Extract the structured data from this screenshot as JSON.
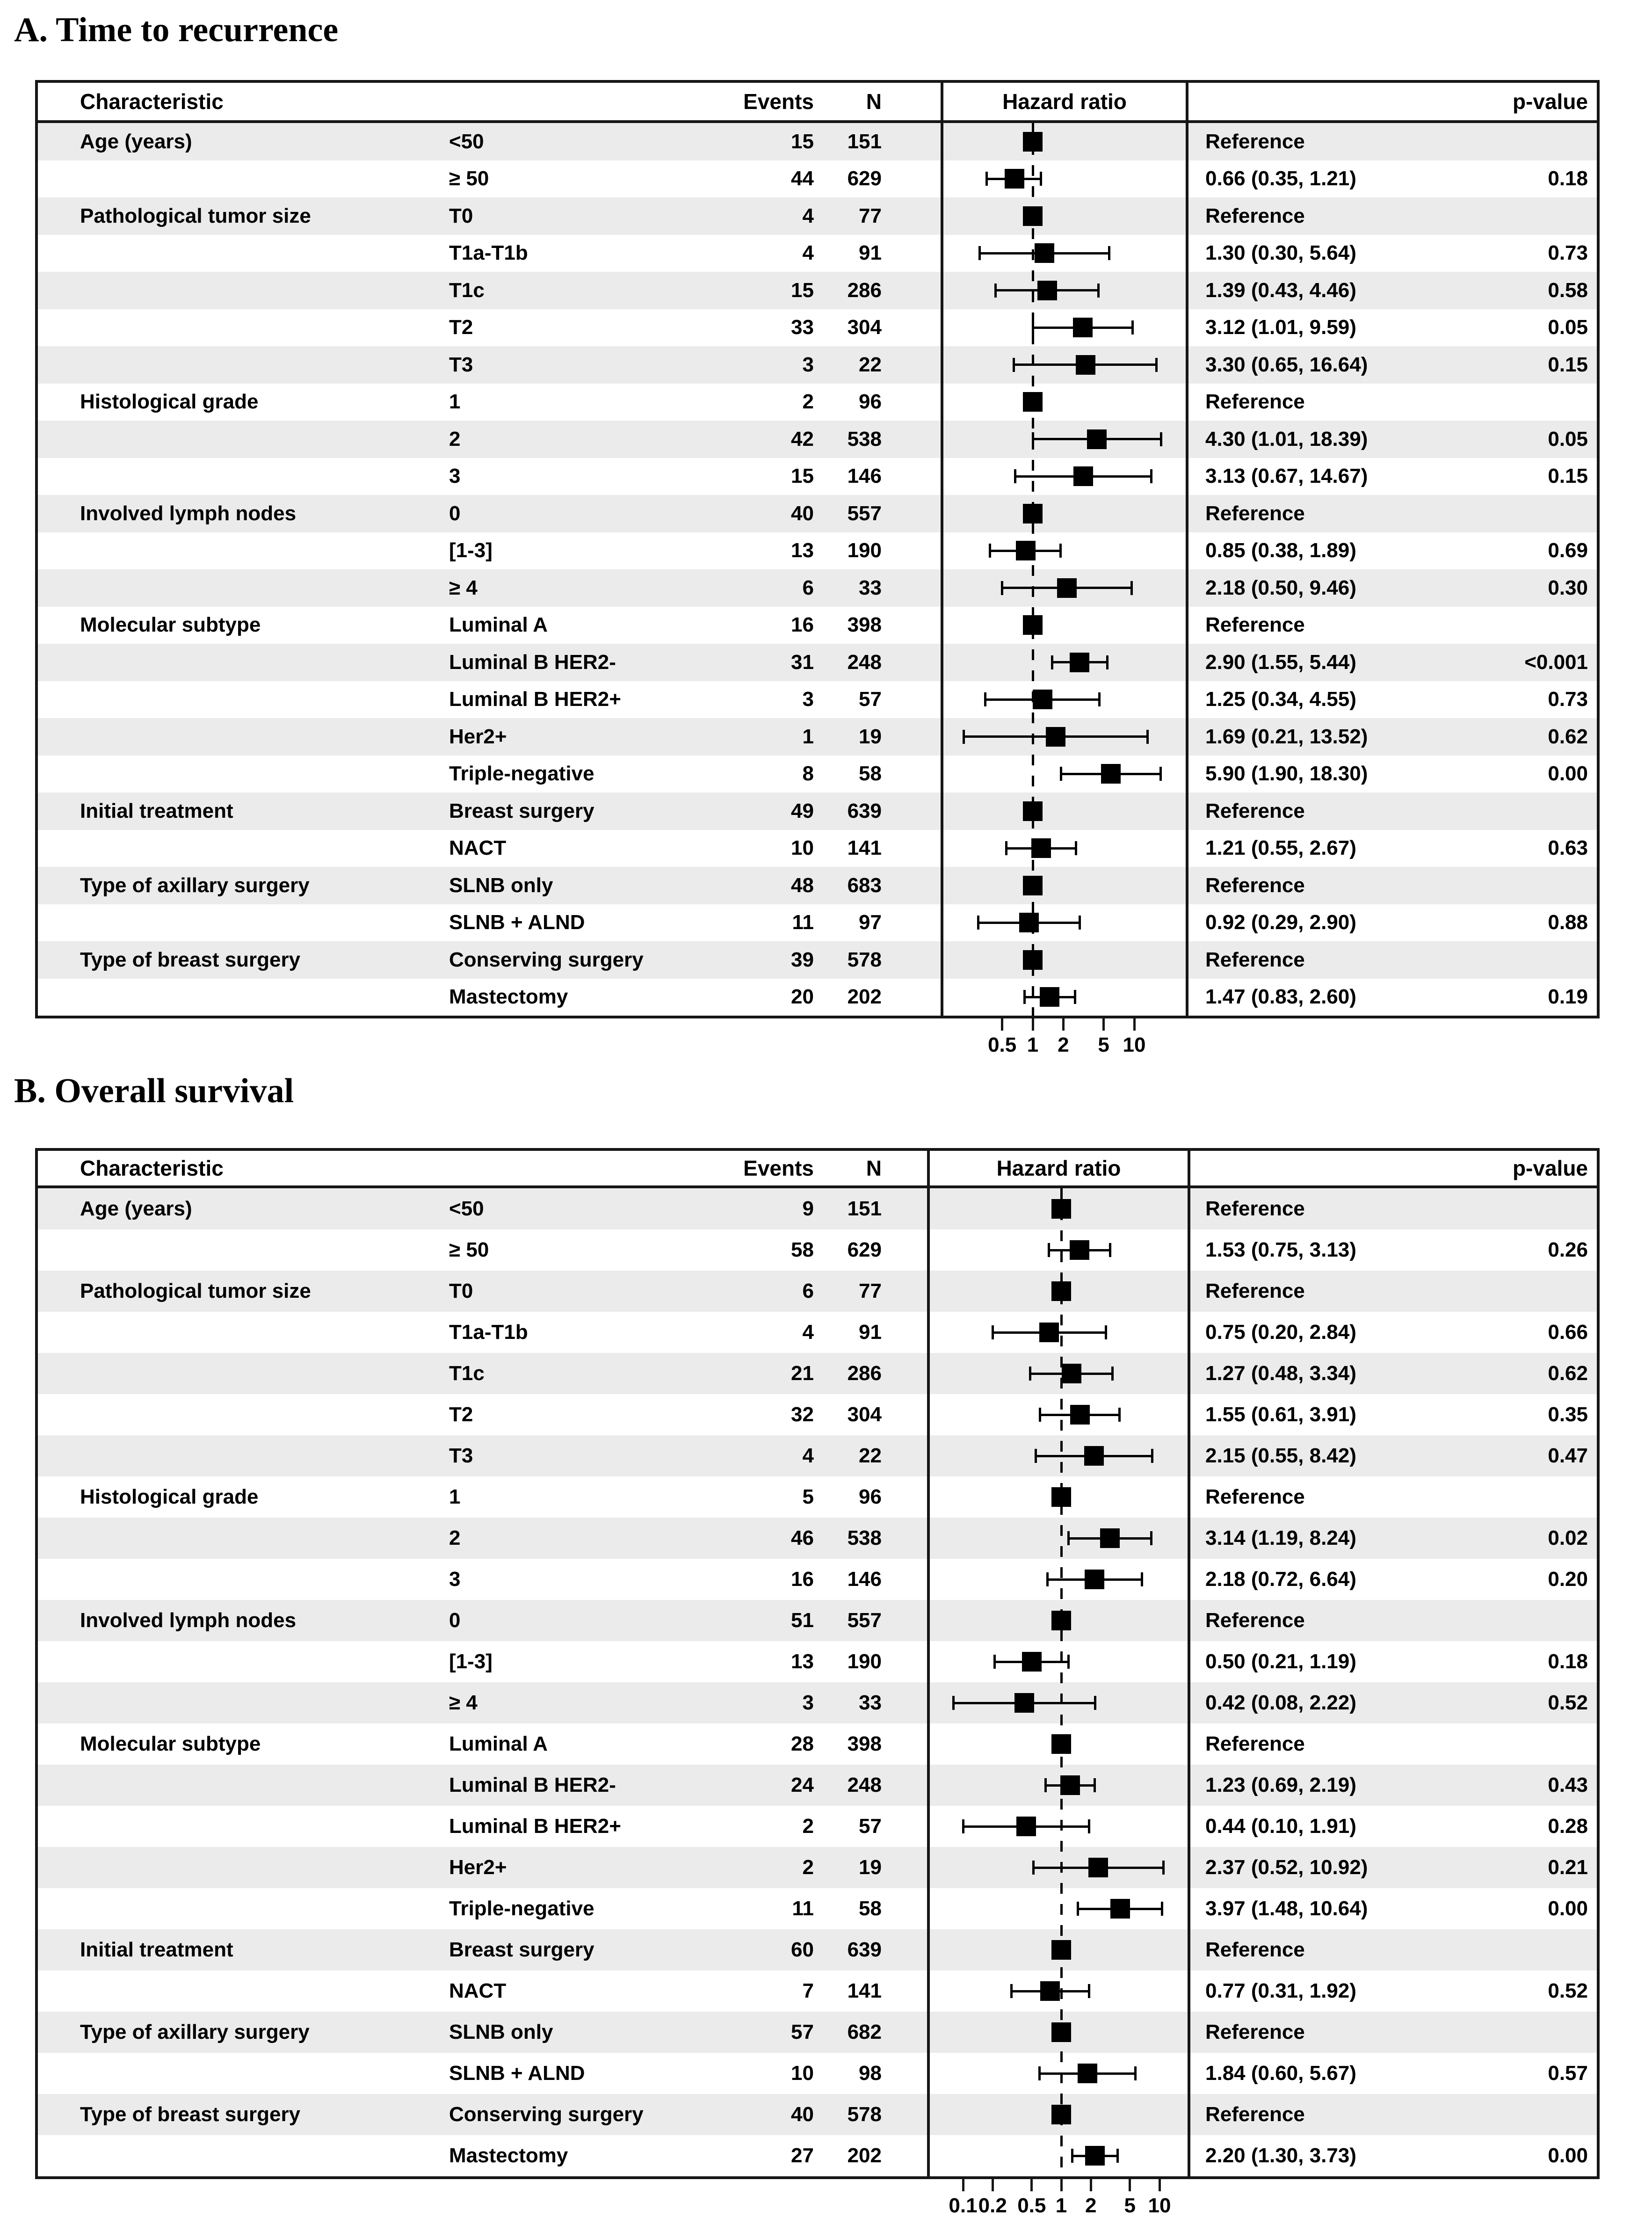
{
  "colors": {
    "row_stripe": "#ebebeb",
    "border": "#161616",
    "marker": "#000000",
    "background": "#ffffff"
  },
  "chart_data": [
    {
      "type": "forest",
      "title": "A. Time to recurrence",
      "columns": {
        "characteristic": "Characteristic",
        "events": "Events",
        "n": "N",
        "hazard_ratio": "Hazard ratio",
        "p_value": "p-value"
      },
      "axis": {
        "scale": "log",
        "ref_line": 1,
        "tick_values": [
          0.5,
          1,
          2,
          5,
          10
        ],
        "tick_labels": [
          "0.5",
          "1",
          "2",
          "5",
          "10"
        ]
      },
      "reference_label": "Reference",
      "rows": [
        {
          "group": "Age (years)",
          "label": "<50",
          "events": 15,
          "n": 151,
          "ref": true,
          "hr": 1,
          "hr_text": "Reference",
          "p": ""
        },
        {
          "group": "",
          "label": "≥ 50",
          "events": 44,
          "n": 629,
          "ref": false,
          "hr": 0.66,
          "lo": 0.35,
          "hi": 1.21,
          "hr_text": "0.66 (0.35, 1.21)",
          "p": "0.18"
        },
        {
          "group": "Pathological tumor size",
          "label": "T0",
          "events": 4,
          "n": 77,
          "ref": true,
          "hr": 1,
          "hr_text": "Reference",
          "p": ""
        },
        {
          "group": "",
          "label": "T1a-T1b",
          "events": 4,
          "n": 91,
          "ref": false,
          "hr": 1.3,
          "lo": 0.3,
          "hi": 5.64,
          "hr_text": "1.30 (0.30, 5.64)",
          "p": "0.73"
        },
        {
          "group": "",
          "label": "T1c",
          "events": 15,
          "n": 286,
          "ref": false,
          "hr": 1.39,
          "lo": 0.43,
          "hi": 4.46,
          "hr_text": "1.39 (0.43, 4.46)",
          "p": "0.58"
        },
        {
          "group": "",
          "label": "T2",
          "events": 33,
          "n": 304,
          "ref": false,
          "hr": 3.12,
          "lo": 1.01,
          "hi": 9.59,
          "hr_text": "3.12 (1.01, 9.59)",
          "p": "0.05"
        },
        {
          "group": "",
          "label": "T3",
          "events": 3,
          "n": 22,
          "ref": false,
          "hr": 3.3,
          "lo": 0.65,
          "hi": 16.64,
          "hr_text": "3.30 (0.65, 16.64)",
          "p": "0.15"
        },
        {
          "group": "Histological grade",
          "label": "1",
          "events": 2,
          "n": 96,
          "ref": true,
          "hr": 1,
          "hr_text": "Reference",
          "p": ""
        },
        {
          "group": "",
          "label": "2",
          "events": 42,
          "n": 538,
          "ref": false,
          "hr": 4.3,
          "lo": 1.01,
          "hi": 18.39,
          "hr_text": "4.30 (1.01, 18.39)",
          "p": "0.05"
        },
        {
          "group": "",
          "label": "3",
          "events": 15,
          "n": 146,
          "ref": false,
          "hr": 3.13,
          "lo": 0.67,
          "hi": 14.67,
          "hr_text": "3.13 (0.67, 14.67)",
          "p": "0.15"
        },
        {
          "group": "Involved lymph nodes",
          "label": "0",
          "events": 40,
          "n": 557,
          "ref": true,
          "hr": 1,
          "hr_text": "Reference",
          "p": ""
        },
        {
          "group": "",
          "label": "[1-3]",
          "events": 13,
          "n": 190,
          "ref": false,
          "hr": 0.85,
          "lo": 0.38,
          "hi": 1.89,
          "hr_text": "0.85 (0.38, 1.89)",
          "p": "0.69"
        },
        {
          "group": "",
          "label": "≥ 4",
          "events": 6,
          "n": 33,
          "ref": false,
          "hr": 2.18,
          "lo": 0.5,
          "hi": 9.46,
          "hr_text": "2.18 (0.50, 9.46)",
          "p": "0.30"
        },
        {
          "group": "Molecular subtype",
          "label": "Luminal A",
          "events": 16,
          "n": 398,
          "ref": true,
          "hr": 1,
          "hr_text": "Reference",
          "p": ""
        },
        {
          "group": "",
          "label": "Luminal B HER2-",
          "events": 31,
          "n": 248,
          "ref": false,
          "hr": 2.9,
          "lo": 1.55,
          "hi": 5.44,
          "hr_text": "2.90 (1.55, 5.44)",
          "p": "<0.001"
        },
        {
          "group": "",
          "label": "Luminal B HER2+",
          "events": 3,
          "n": 57,
          "ref": false,
          "hr": 1.25,
          "lo": 0.34,
          "hi": 4.55,
          "hr_text": "1.25 (0.34, 4.55)",
          "p": "0.73"
        },
        {
          "group": "",
          "label": "Her2+",
          "events": 1,
          "n": 19,
          "ref": false,
          "hr": 1.69,
          "lo": 0.21,
          "hi": 13.52,
          "hr_text": "1.69 (0.21, 13.52)",
          "p": "0.62"
        },
        {
          "group": "",
          "label": "Triple-negative",
          "events": 8,
          "n": 58,
          "ref": false,
          "hr": 5.9,
          "lo": 1.9,
          "hi": 18.3,
          "hr_text": "5.90 (1.90, 18.30)",
          "p": "0.00"
        },
        {
          "group": "Initial treatment",
          "label": "Breast surgery",
          "events": 49,
          "n": 639,
          "ref": true,
          "hr": 1,
          "hr_text": "Reference",
          "p": ""
        },
        {
          "group": "",
          "label": "NACT",
          "events": 10,
          "n": 141,
          "ref": false,
          "hr": 1.21,
          "lo": 0.55,
          "hi": 2.67,
          "hr_text": "1.21 (0.55, 2.67)",
          "p": "0.63"
        },
        {
          "group": "Type of axillary surgery",
          "label": "SLNB only",
          "events": 48,
          "n": 683,
          "ref": true,
          "hr": 1,
          "hr_text": "Reference",
          "p": ""
        },
        {
          "group": "",
          "label": "SLNB + ALND",
          "events": 11,
          "n": 97,
          "ref": false,
          "hr": 0.92,
          "lo": 0.29,
          "hi": 2.9,
          "hr_text": "0.92 (0.29, 2.90)",
          "p": "0.88"
        },
        {
          "group": "Type of breast surgery",
          "label": "Conserving surgery",
          "events": 39,
          "n": 578,
          "ref": true,
          "hr": 1,
          "hr_text": "Reference",
          "p": ""
        },
        {
          "group": "",
          "label": "Mastectomy",
          "events": 20,
          "n": 202,
          "ref": false,
          "hr": 1.47,
          "lo": 0.83,
          "hi": 2.6,
          "hr_text": "1.47 (0.83, 2.60)",
          "p": "0.19"
        }
      ]
    },
    {
      "type": "forest",
      "title": "B. Overall survival",
      "columns": {
        "characteristic": "Characteristic",
        "events": "Events",
        "n": "N",
        "hazard_ratio": "Hazard ratio",
        "p_value": "p-value"
      },
      "axis": {
        "scale": "log",
        "ref_line": 1,
        "tick_values": [
          0.1,
          0.2,
          0.5,
          1,
          2,
          5,
          10
        ],
        "tick_labels": [
          "0.1",
          "0.2",
          "0.5",
          "1",
          "2",
          "5",
          "10"
        ]
      },
      "reference_label": "Reference",
      "rows": [
        {
          "group": "Age (years)",
          "label": "<50",
          "events": 9,
          "n": 151,
          "ref": true,
          "hr": 1,
          "hr_text": "Reference",
          "p": ""
        },
        {
          "group": "",
          "label": "≥ 50",
          "events": 58,
          "n": 629,
          "ref": false,
          "hr": 1.53,
          "lo": 0.75,
          "hi": 3.13,
          "hr_text": "1.53 (0.75, 3.13)",
          "p": "0.26"
        },
        {
          "group": "Pathological tumor size",
          "label": "T0",
          "events": 6,
          "n": 77,
          "ref": true,
          "hr": 1,
          "hr_text": "Reference",
          "p": ""
        },
        {
          "group": "",
          "label": "T1a-T1b",
          "events": 4,
          "n": 91,
          "ref": false,
          "hr": 0.75,
          "lo": 0.2,
          "hi": 2.84,
          "hr_text": "0.75 (0.20, 2.84)",
          "p": "0.66"
        },
        {
          "group": "",
          "label": "T1c",
          "events": 21,
          "n": 286,
          "ref": false,
          "hr": 1.27,
          "lo": 0.48,
          "hi": 3.34,
          "hr_text": "1.27 (0.48, 3.34)",
          "p": "0.62"
        },
        {
          "group": "",
          "label": "T2",
          "events": 32,
          "n": 304,
          "ref": false,
          "hr": 1.55,
          "lo": 0.61,
          "hi": 3.91,
          "hr_text": "1.55 (0.61, 3.91)",
          "p": "0.35"
        },
        {
          "group": "",
          "label": "T3",
          "events": 4,
          "n": 22,
          "ref": false,
          "hr": 2.15,
          "lo": 0.55,
          "hi": 8.42,
          "hr_text": "2.15 (0.55, 8.42)",
          "p": "0.47"
        },
        {
          "group": "Histological grade",
          "label": "1",
          "events": 5,
          "n": 96,
          "ref": true,
          "hr": 1,
          "hr_text": "Reference",
          "p": ""
        },
        {
          "group": "",
          "label": "2",
          "events": 46,
          "n": 538,
          "ref": false,
          "hr": 3.14,
          "lo": 1.19,
          "hi": 8.24,
          "hr_text": "3.14 (1.19, 8.24)",
          "p": "0.02"
        },
        {
          "group": "",
          "label": "3",
          "events": 16,
          "n": 146,
          "ref": false,
          "hr": 2.18,
          "lo": 0.72,
          "hi": 6.64,
          "hr_text": "2.18 (0.72, 6.64)",
          "p": "0.20"
        },
        {
          "group": "Involved lymph nodes",
          "label": "0",
          "events": 51,
          "n": 557,
          "ref": true,
          "hr": 1,
          "hr_text": "Reference",
          "p": ""
        },
        {
          "group": "",
          "label": "[1-3]",
          "events": 13,
          "n": 190,
          "ref": false,
          "hr": 0.5,
          "lo": 0.21,
          "hi": 1.19,
          "hr_text": "0.50 (0.21, 1.19)",
          "p": "0.18"
        },
        {
          "group": "",
          "label": "≥ 4",
          "events": 3,
          "n": 33,
          "ref": false,
          "hr": 0.42,
          "lo": 0.08,
          "hi": 2.22,
          "hr_text": "0.42 (0.08, 2.22)",
          "p": "0.52"
        },
        {
          "group": "Molecular subtype",
          "label": "Luminal A",
          "events": 28,
          "n": 398,
          "ref": true,
          "hr": 1,
          "hr_text": "Reference",
          "p": ""
        },
        {
          "group": "",
          "label": "Luminal B HER2-",
          "events": 24,
          "n": 248,
          "ref": false,
          "hr": 1.23,
          "lo": 0.69,
          "hi": 2.19,
          "hr_text": "1.23 (0.69, 2.19)",
          "p": "0.43"
        },
        {
          "group": "",
          "label": "Luminal B HER2+",
          "events": 2,
          "n": 57,
          "ref": false,
          "hr": 0.44,
          "lo": 0.1,
          "hi": 1.91,
          "hr_text": "0.44 (0.10, 1.91)",
          "p": "0.28"
        },
        {
          "group": "",
          "label": "Her2+",
          "events": 2,
          "n": 19,
          "ref": false,
          "hr": 2.37,
          "lo": 0.52,
          "hi": 10.92,
          "hr_text": "2.37 (0.52, 10.92)",
          "p": "0.21"
        },
        {
          "group": "",
          "label": "Triple-negative",
          "events": 11,
          "n": 58,
          "ref": false,
          "hr": 3.97,
          "lo": 1.48,
          "hi": 10.64,
          "hr_text": "3.97 (1.48, 10.64)",
          "p": "0.00"
        },
        {
          "group": "Initial treatment",
          "label": "Breast surgery",
          "events": 60,
          "n": 639,
          "ref": true,
          "hr": 1,
          "hr_text": "Reference",
          "p": ""
        },
        {
          "group": "",
          "label": "NACT",
          "events": 7,
          "n": 141,
          "ref": false,
          "hr": 0.77,
          "lo": 0.31,
          "hi": 1.92,
          "hr_text": "0.77 (0.31, 1.92)",
          "p": "0.52"
        },
        {
          "group": "Type of axillary surgery",
          "label": "SLNB only",
          "events": 57,
          "n": 682,
          "ref": true,
          "hr": 1,
          "hr_text": "Reference",
          "p": ""
        },
        {
          "group": "",
          "label": "SLNB + ALND",
          "events": 10,
          "n": 98,
          "ref": false,
          "hr": 1.84,
          "lo": 0.6,
          "hi": 5.67,
          "hr_text": "1.84 (0.60, 5.67)",
          "p": "0.57"
        },
        {
          "group": "Type of breast surgery",
          "label": "Conserving surgery",
          "events": 40,
          "n": 578,
          "ref": true,
          "hr": 1,
          "hr_text": "Reference",
          "p": ""
        },
        {
          "group": "",
          "label": "Mastectomy",
          "events": 27,
          "n": 202,
          "ref": false,
          "hr": 2.2,
          "lo": 1.3,
          "hi": 3.73,
          "hr_text": "2.20 (1.30, 3.73)",
          "p": "0.00"
        }
      ]
    }
  ]
}
